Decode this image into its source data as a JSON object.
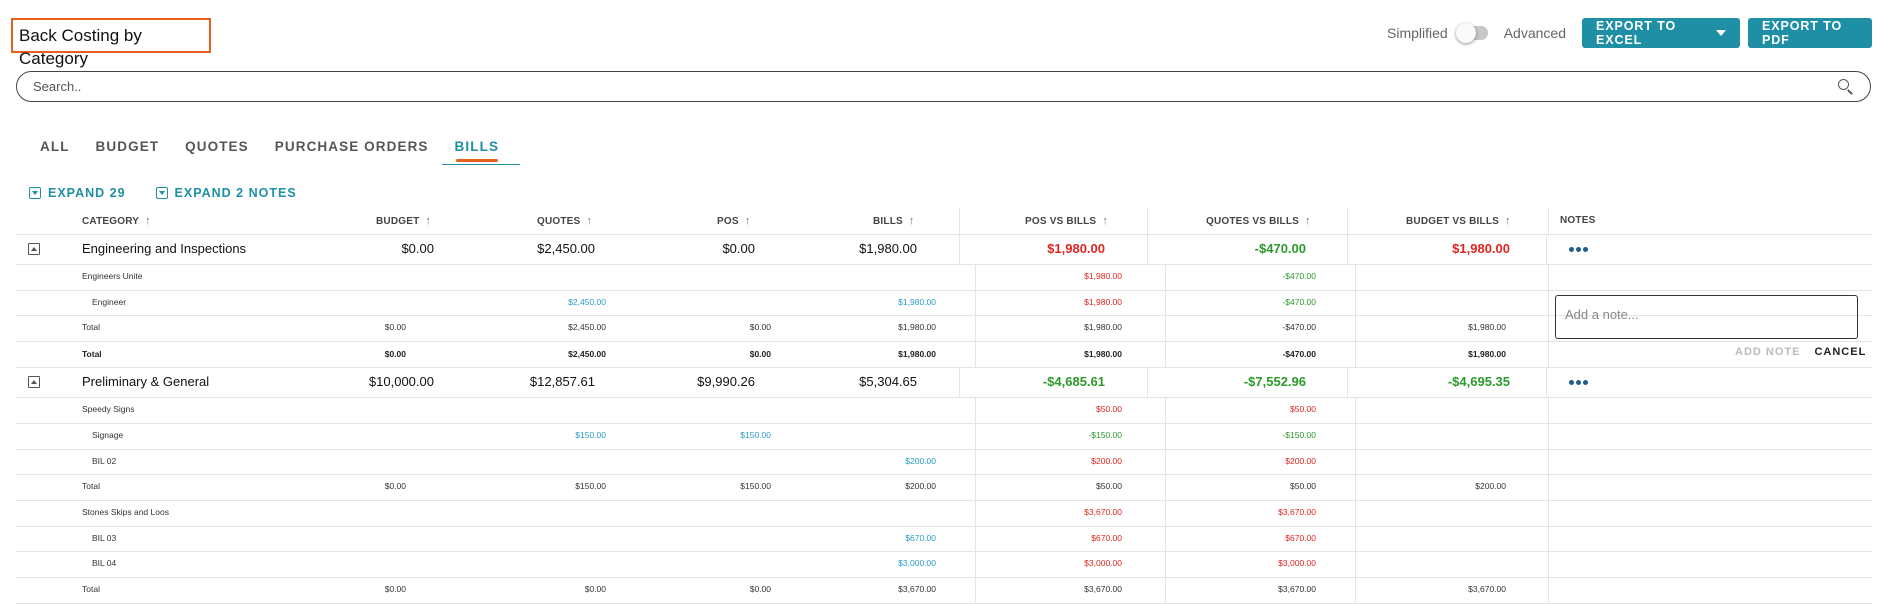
{
  "header": {
    "title": "Back Costing by Category"
  },
  "view_toggle": {
    "left_label": "Simplified",
    "right_label": "Advanced",
    "state": "simplified"
  },
  "toolbar": {
    "export_excel": "EXPORT TO EXCEL",
    "export_pdf": "EXPORT TO PDF"
  },
  "search": {
    "placeholder": "Search.."
  },
  "tabs": [
    {
      "label": "ALL",
      "active": false
    },
    {
      "label": "BUDGET",
      "active": false
    },
    {
      "label": "QUOTES",
      "active": false
    },
    {
      "label": "PURCHASE ORDERS",
      "active": false
    },
    {
      "label": "BILLS",
      "active": true
    }
  ],
  "expand": {
    "expand_all": "EXPAND 29",
    "expand_notes": "EXPAND 2 NOTES"
  },
  "columns": {
    "category": "CATEGORY",
    "budget": "BUDGET",
    "quotes": "QUOTES",
    "pos": "POS",
    "bills": "BILLS",
    "pos_vs_bills": "POS VS BILLS",
    "quotes_vs_bills": "QUOTES VS BILLS",
    "budget_vs_bills": "BUDGET VS BILLS",
    "notes": "NOTES"
  },
  "colors": {
    "accent": "#1e8fa4",
    "highlight": "#e8601c",
    "negative": "#e0241f",
    "positive": "#2b9a2b",
    "link": "#2a9bc6"
  },
  "groups": [
    {
      "name": "Engineering and Inspections",
      "summary": {
        "budget": "$0.00",
        "quotes": "$2,450.00",
        "pos": "$0.00",
        "bills": "$1,980.00",
        "pos_vs_bills": "$1,980.00",
        "quotes_vs_bills": "-$470.00",
        "budget_vs_bills": "$1,980.00"
      },
      "vendors": [
        {
          "name": "Engineers Unite",
          "head": {
            "pos_vs_bills": "$1,980.00",
            "quotes_vs_bills": "-$470.00"
          },
          "items": [
            {
              "name": "Engineer",
              "quotes": "$2,450.00",
              "pos": "",
              "bills": "$1,980.00",
              "pos_vs_bills": "$1,980.00",
              "quotes_vs_bills": "-$470.00"
            }
          ],
          "total": {
            "label": "Total",
            "budget": "$0.00",
            "quotes": "$2,450.00",
            "pos": "$0.00",
            "bills": "$1,980.00",
            "pos_vs_bills": "$1,980.00",
            "quotes_vs_bills": "-$470.00",
            "budget_vs_bills": "$1,980.00"
          }
        }
      ],
      "grand_total": {
        "label": "Total",
        "budget": "$0.00",
        "quotes": "$2,450.00",
        "pos": "$0.00",
        "bills": "$1,980.00",
        "pos_vs_bills": "$1,980.00",
        "quotes_vs_bills": "-$470.00",
        "budget_vs_bills": "$1,980.00"
      }
    },
    {
      "name": "Preliminary & General",
      "summary": {
        "budget": "$10,000.00",
        "quotes": "$12,857.61",
        "pos": "$9,990.26",
        "bills": "$5,304.65",
        "pos_vs_bills": "-$4,685.61",
        "quotes_vs_bills": "-$7,552.96",
        "budget_vs_bills": "-$4,695.35"
      },
      "vendors": [
        {
          "name": "Speedy Signs",
          "head": {
            "pos_vs_bills": "$50.00",
            "quotes_vs_bills": "$50.00"
          },
          "items": [
            {
              "name": "Signage",
              "quotes": "$150.00",
              "pos": "$150.00",
              "bills": "",
              "pos_vs_bills": "-$150.00",
              "quotes_vs_bills": "-$150.00"
            },
            {
              "name": "BIL 02",
              "quotes": "",
              "pos": "",
              "bills": "$200.00",
              "pos_vs_bills": "$200.00",
              "quotes_vs_bills": "$200.00"
            }
          ],
          "total": {
            "label": "Total",
            "budget": "$0.00",
            "quotes": "$150.00",
            "pos": "$150.00",
            "bills": "$200.00",
            "pos_vs_bills": "$50.00",
            "quotes_vs_bills": "$50.00",
            "budget_vs_bills": "$200.00"
          }
        },
        {
          "name": "Stones Skips and Loos",
          "head": {
            "pos_vs_bills": "$3,670.00",
            "quotes_vs_bills": "$3,670.00"
          },
          "items": [
            {
              "name": "BIL 03",
              "quotes": "",
              "pos": "",
              "bills": "$670.00",
              "pos_vs_bills": "$670.00",
              "quotes_vs_bills": "$670.00"
            },
            {
              "name": "BIL 04",
              "quotes": "",
              "pos": "",
              "bills": "$3,000.00",
              "pos_vs_bills": "$3,000.00",
              "quotes_vs_bills": "$3,000.00"
            }
          ],
          "total": {
            "label": "Total",
            "budget": "$0.00",
            "quotes": "$0.00",
            "pos": "$0.00",
            "bills": "$3,670.00",
            "pos_vs_bills": "$3,670.00",
            "quotes_vs_bills": "$3,670.00",
            "budget_vs_bills": "$3,670.00"
          }
        }
      ]
    }
  ],
  "note_editor": {
    "placeholder": "Add a note...",
    "add_label": "ADD NOTE",
    "cancel_label": "CANCEL"
  }
}
